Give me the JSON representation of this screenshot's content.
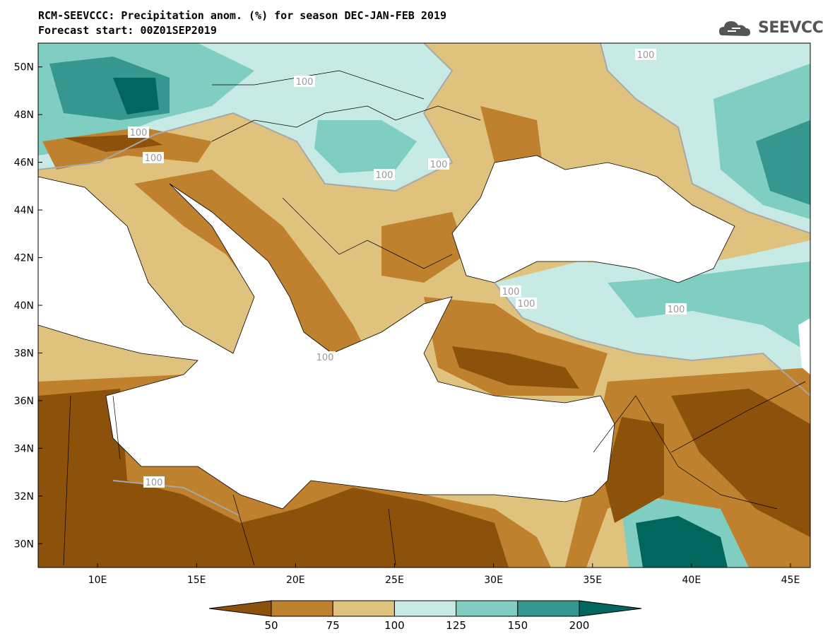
{
  "title_line1": "RCM-SEEVCCC: Precipitation anom. (%) for season DEC-JAN-FEB 2019",
  "title_line2": "Forecast start: 00Z01SEP2019",
  "logo_text": "SEEVCCC",
  "logo_icon": "cloud-icon",
  "map": {
    "lon_range": [
      7,
      46
    ],
    "lat_range": [
      29,
      51
    ],
    "lon_ticks": [
      "10E",
      "15E",
      "20E",
      "25E",
      "30E",
      "35E",
      "40E",
      "45E"
    ],
    "lat_ticks": [
      "50N",
      "48N",
      "46N",
      "44N",
      "42N",
      "40N",
      "38N",
      "36N",
      "34N",
      "32N",
      "30N"
    ],
    "contour_labels": [
      "100",
      "100",
      "100",
      "100",
      "100",
      "100",
      "100",
      "100",
      "100",
      "100",
      "100"
    ]
  },
  "colorbar": {
    "levels": [
      "50",
      "75",
      "100",
      "125",
      "150",
      "200"
    ],
    "colors": [
      "#8c510a",
      "#bf812d",
      "#dfc27d",
      "#c7eae5",
      "#80cdc1",
      "#35978f",
      "#01665e"
    ]
  },
  "colors": {
    "sea": "#ffffff",
    "contour_100": "#a8a8a8"
  }
}
